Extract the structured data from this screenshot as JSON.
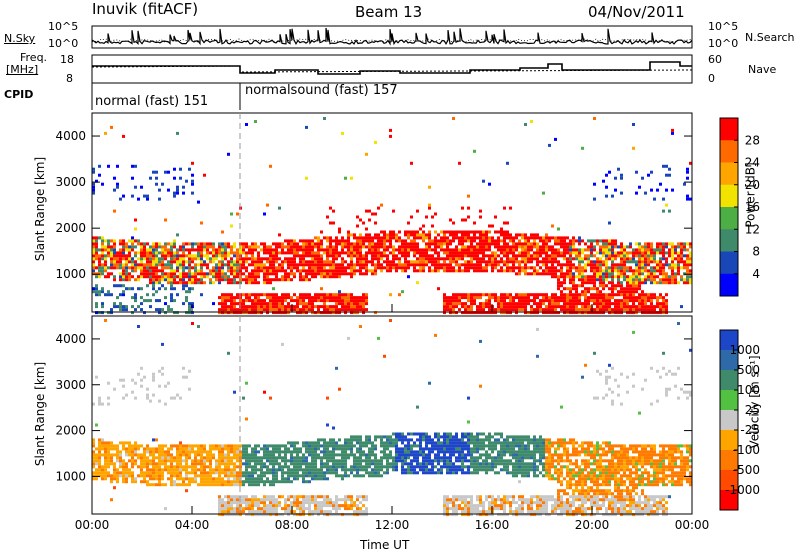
{
  "header": {
    "station": "Inuvik (fitACF)",
    "beam": "Beam 13",
    "date": "04/Nov/2011"
  },
  "panels": {
    "noise": {
      "left_label": "N.Sky",
      "right_label": "N.Search",
      "left_ticks": [
        "10^5",
        "10^0"
      ],
      "right_ticks": [
        "10^5",
        "10^0"
      ]
    },
    "freq": {
      "left_label_line1": "Freq.",
      "left_label_line2": "[MHz]",
      "right_label": "Nave",
      "left_ticks": [
        "18",
        "8"
      ],
      "right_ticks": [
        "60",
        "0"
      ]
    },
    "cpid": {
      "label": "CPID",
      "modes": [
        "normal (fast) 151",
        "normalsound (fast) 157"
      ]
    }
  },
  "chart_data": [
    {
      "type": "heatmap",
      "name": "power",
      "xlabel": "Time UT",
      "ylabel": "Slant Range [km]",
      "x_ticks": [
        "00:00",
        "04:00",
        "08:00",
        "12:00",
        "16:00",
        "20:00",
        "00:00"
      ],
      "y_ticks": [
        1000,
        2000,
        3000,
        4000
      ],
      "colorbar_label": "Power [dB]",
      "colorbar_ticks": [
        28,
        24,
        20,
        16,
        12,
        8,
        4
      ],
      "colorbar_colors": [
        "#ff0000",
        "#ff6a00",
        "#ffa500",
        "#f2e200",
        "#4cae44",
        "#3f8a6a",
        "#1a47b8",
        "#0000ff"
      ]
    },
    {
      "type": "heatmap",
      "name": "velocity",
      "xlabel": "Time UT",
      "ylabel": "Slant Range [km]",
      "x_ticks": [
        "00:00",
        "04:00",
        "08:00",
        "12:00",
        "16:00",
        "20:00",
        "00:00"
      ],
      "y_ticks": [
        1000,
        2000,
        3000,
        4000
      ],
      "colorbar_label": "Velocity [m s⁻¹]",
      "colorbar_ticks": [
        "1000",
        "500",
        "100",
        "25",
        "-25",
        "-100",
        "-500",
        "-1000"
      ],
      "colorbar_colors": [
        "#1e46c8",
        "#2e6aa8",
        "#3f8a6a",
        "#52c040",
        "#c8c8c8",
        "#ffa500",
        "#ff7a00",
        "#ff4a00",
        "#ff0000"
      ]
    }
  ]
}
